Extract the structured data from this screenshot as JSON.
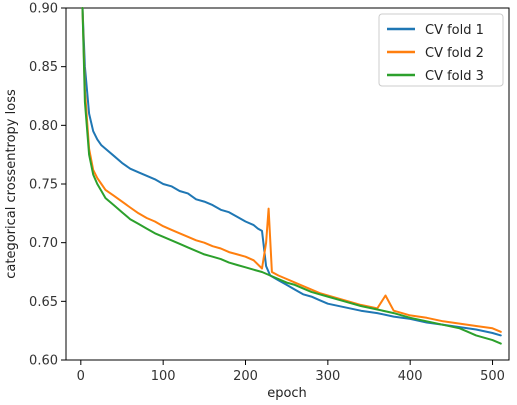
{
  "chart_data": {
    "type": "line",
    "title": "",
    "xlabel": "epoch",
    "ylabel": "categorical crossentropy loss",
    "xlim": [
      -18,
      520
    ],
    "ylim": [
      0.6,
      0.9
    ],
    "xticks": [
      0,
      100,
      200,
      300,
      400,
      500
    ],
    "xtick_labels": [
      "0",
      "100",
      "200",
      "300",
      "400",
      "500"
    ],
    "yticks": [
      0.6,
      0.65,
      0.7,
      0.75,
      0.8,
      0.85,
      0.9
    ],
    "ytick_labels": [
      "0.60",
      "0.65",
      "0.70",
      "0.75",
      "0.80",
      "0.85",
      "0.90"
    ],
    "grid": false,
    "legend_position": "top-right",
    "series": [
      {
        "name": "CV fold 1",
        "color": "#1f77b4",
        "x": [
          2,
          5,
          10,
          15,
          20,
          25,
          30,
          40,
          50,
          60,
          70,
          80,
          90,
          100,
          110,
          120,
          130,
          140,
          150,
          160,
          170,
          180,
          190,
          200,
          210,
          215,
          220,
          225,
          230,
          240,
          250,
          260,
          270,
          280,
          290,
          300,
          320,
          340,
          360,
          380,
          400,
          420,
          440,
          460,
          480,
          500,
          510
        ],
        "y": [
          0.9,
          0.85,
          0.81,
          0.795,
          0.788,
          0.783,
          0.78,
          0.774,
          0.768,
          0.763,
          0.76,
          0.757,
          0.754,
          0.75,
          0.748,
          0.744,
          0.742,
          0.737,
          0.735,
          0.732,
          0.728,
          0.726,
          0.722,
          0.718,
          0.715,
          0.712,
          0.71,
          0.68,
          0.672,
          0.668,
          0.664,
          0.66,
          0.656,
          0.654,
          0.651,
          0.648,
          0.645,
          0.642,
          0.64,
          0.637,
          0.635,
          0.632,
          0.63,
          0.628,
          0.626,
          0.623,
          0.621
        ]
      },
      {
        "name": "CV fold 2",
        "color": "#ff7f0e",
        "x": [
          2,
          5,
          10,
          15,
          20,
          25,
          30,
          40,
          50,
          60,
          70,
          80,
          90,
          100,
          110,
          120,
          130,
          140,
          150,
          160,
          170,
          180,
          190,
          200,
          210,
          220,
          225,
          228,
          232,
          240,
          250,
          260,
          270,
          280,
          290,
          300,
          320,
          340,
          360,
          370,
          380,
          400,
          420,
          440,
          460,
          480,
          500,
          510
        ],
        "y": [
          0.9,
          0.83,
          0.78,
          0.762,
          0.755,
          0.75,
          0.745,
          0.74,
          0.735,
          0.73,
          0.725,
          0.721,
          0.718,
          0.714,
          0.711,
          0.708,
          0.705,
          0.702,
          0.7,
          0.697,
          0.695,
          0.692,
          0.69,
          0.688,
          0.685,
          0.678,
          0.7,
          0.729,
          0.675,
          0.672,
          0.669,
          0.666,
          0.663,
          0.66,
          0.657,
          0.655,
          0.651,
          0.647,
          0.644,
          0.655,
          0.642,
          0.638,
          0.636,
          0.633,
          0.631,
          0.629,
          0.627,
          0.624
        ]
      },
      {
        "name": "CV fold 3",
        "color": "#2ca02c",
        "x": [
          2,
          5,
          10,
          15,
          20,
          25,
          30,
          40,
          50,
          60,
          70,
          80,
          90,
          100,
          110,
          120,
          130,
          140,
          150,
          160,
          170,
          180,
          190,
          200,
          210,
          220,
          230,
          240,
          250,
          260,
          270,
          280,
          290,
          300,
          320,
          340,
          360,
          380,
          400,
          420,
          440,
          460,
          470,
          480,
          500,
          510
        ],
        "y": [
          0.9,
          0.82,
          0.775,
          0.758,
          0.75,
          0.744,
          0.738,
          0.732,
          0.726,
          0.72,
          0.716,
          0.712,
          0.708,
          0.705,
          0.702,
          0.699,
          0.696,
          0.693,
          0.69,
          0.688,
          0.686,
          0.683,
          0.681,
          0.679,
          0.677,
          0.675,
          0.672,
          0.669,
          0.666,
          0.664,
          0.661,
          0.658,
          0.656,
          0.654,
          0.65,
          0.646,
          0.643,
          0.64,
          0.636,
          0.633,
          0.63,
          0.627,
          0.624,
          0.621,
          0.617,
          0.614
        ]
      }
    ]
  }
}
